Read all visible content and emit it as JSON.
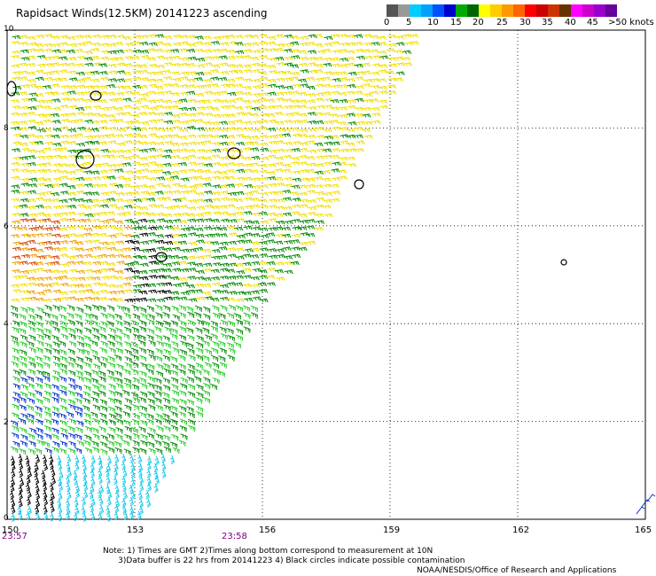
{
  "title": "Rapidsact Winds(12.5KM) 20141223 ascending",
  "legend": {
    "labels": [
      "0",
      "5",
      "10",
      "15",
      "20",
      "25",
      "30",
      "35",
      "40",
      "45",
      ">50 knots"
    ],
    "colors": [
      "#555555",
      "#999999",
      "#00ccff",
      "#00a0ff",
      "#0050ff",
      "#0000cc",
      "#00aa00",
      "#006600",
      "#ffff00",
      "#ffcc00",
      "#ff9900",
      "#ff6600",
      "#ff0000",
      "#cc0000",
      "#cc3300",
      "#663300",
      "#ff00ff",
      "#cc00cc",
      "#9900cc",
      "#660099"
    ]
  },
  "axes": {
    "lon_labels": [
      "150",
      "153",
      "156",
      "159",
      "162",
      "165"
    ],
    "lat_labels": [
      "10",
      "8",
      "6",
      "4",
      "2",
      "0"
    ]
  },
  "times": {
    "left": "23:57",
    "mid": "23:58"
  },
  "notes": "Note: 1) Times are GMT 2)Times along bottom correspond to measurement at 10N\n      3)Data buffer is 22 hrs from 20141223 4) Black circles indicate possible contamination",
  "credit": "NOAA/NESDIS/Office of Research and Applications",
  "wind_colors": {
    "yellow": "#f2de00",
    "orange": "#f0a000",
    "red": "#d24000",
    "green_dark": "#008a00",
    "green_light": "#20cc20",
    "blue": "#0030d0",
    "cyan": "#10c8e8",
    "black": "#000000"
  }
}
